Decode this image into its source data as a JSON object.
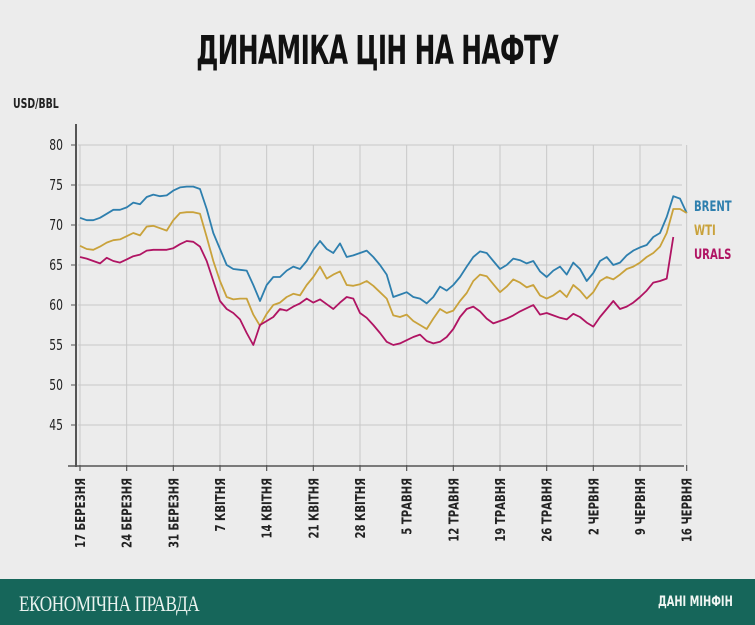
{
  "header": {
    "title": "ДИНАМІКА ЦІН НА НАФТУ",
    "unit_label": "USD/BBL"
  },
  "footer": {
    "brand": "ЕКОНОМІЧНА ПРАВДА",
    "source": "ДАНІ МІНФІН"
  },
  "colors": {
    "background": "#ececec",
    "grid": "#c8c8c8",
    "axis": "#555555",
    "brent": "#2e7fae",
    "wti": "#c9a23b",
    "urals": "#b01463",
    "footer": "#16665a"
  },
  "legend": [
    {
      "name": "BRENT",
      "color": "#2e7fae"
    },
    {
      "name": "WTI",
      "color": "#c9a23b"
    },
    {
      "name": "URALS",
      "color": "#b01463"
    }
  ],
  "chart_data": {
    "type": "line",
    "title": "ДИНАМІКА ЦІН НА НАФТУ",
    "xlabel": "",
    "ylabel": "USD/BBL",
    "ylim": [
      40,
      80
    ],
    "yticks": [
      45,
      50,
      55,
      60,
      65,
      70,
      75,
      80
    ],
    "grid": true,
    "legend_position": "right",
    "x_tick_labels": [
      "17 БЕРЕЗНЯ",
      "24 БЕРЕЗНЯ",
      "31 БЕРЕЗНЯ",
      "7 КВІТНЯ",
      "14 КВІТНЯ",
      "21 КВІТНЯ",
      "28 КВІТНЯ",
      "5 ТРАВНЯ",
      "12 ТРАВНЯ",
      "19 ТРАВНЯ",
      "26 ТРАВНЯ",
      "2 ЧЕРВНЯ",
      "9 ЧЕРВНЯ",
      "16 ЧЕРВНЯ"
    ],
    "x_day_offsets_note": "x values are days since 17 березня",
    "series": [
      {
        "name": "BRENT",
        "color": "#2e7fae",
        "x": [
          0,
          1,
          2,
          3,
          4,
          5,
          6,
          7,
          8,
          9,
          10,
          11,
          12,
          13,
          14,
          15,
          16,
          17,
          18,
          19,
          20,
          21,
          22,
          23,
          24,
          25,
          26,
          27,
          28,
          29,
          30,
          31,
          32,
          33,
          34,
          35,
          36,
          37,
          38,
          39,
          40,
          41,
          42,
          43,
          44,
          45,
          46,
          47,
          48,
          49,
          50,
          51,
          52,
          53,
          54,
          55,
          56,
          57,
          58,
          59,
          60,
          61,
          62,
          63,
          64,
          65,
          66,
          67,
          68,
          69,
          70,
          71,
          72,
          73,
          74,
          75,
          76,
          77,
          78,
          79,
          80,
          81,
          82,
          83,
          84,
          85,
          86,
          87,
          88,
          89,
          90,
          91
        ],
        "values": [
          70.9,
          70.6,
          70.6,
          70.9,
          71.4,
          71.9,
          71.9,
          72.2,
          72.8,
          72.6,
          73.5,
          73.8,
          73.6,
          73.7,
          74.3,
          74.7,
          74.8,
          74.8,
          74.5,
          72.0,
          69.0,
          67.0,
          65.0,
          64.5,
          64.4,
          64.3,
          62.5,
          60.5,
          62.5,
          63.5,
          63.5,
          64.3,
          64.8,
          64.5,
          65.5,
          66.9,
          68.0,
          67.0,
          66.5,
          67.7,
          66.0,
          66.2,
          66.5,
          66.8,
          66.0,
          65.0,
          63.8,
          61.0,
          61.3,
          61.6,
          61.0,
          60.8,
          60.2,
          61.0,
          62.3,
          61.8,
          62.5,
          63.5,
          64.8,
          66.0,
          66.7,
          66.5,
          65.5,
          64.5,
          65.0,
          65.8,
          65.6,
          65.2,
          65.5,
          64.2,
          63.5,
          64.3,
          64.8,
          63.8,
          65.3,
          64.5,
          63.0,
          64.0,
          65.5,
          66.0,
          65.0,
          65.3,
          66.2,
          66.8,
          67.2,
          67.5,
          68.5,
          69.0,
          71.0,
          73.6,
          73.3,
          71.5
        ]
      },
      {
        "name": "WTI",
        "color": "#c9a23b",
        "x": [
          0,
          1,
          2,
          3,
          4,
          5,
          6,
          7,
          8,
          9,
          10,
          11,
          12,
          13,
          14,
          15,
          16,
          17,
          18,
          19,
          20,
          21,
          22,
          23,
          24,
          25,
          26,
          27,
          28,
          29,
          30,
          31,
          32,
          33,
          34,
          35,
          36,
          37,
          38,
          39,
          40,
          41,
          42,
          43,
          44,
          45,
          46,
          47,
          48,
          49,
          50,
          51,
          52,
          53,
          54,
          55,
          56,
          57,
          58,
          59,
          60,
          61,
          62,
          63,
          64,
          65,
          66,
          67,
          68,
          69,
          70,
          71,
          72,
          73,
          74,
          75,
          76,
          77,
          78,
          79,
          80,
          81,
          82,
          83,
          84,
          85,
          86,
          87,
          88,
          89,
          90,
          91
        ],
        "values": [
          67.4,
          67.0,
          66.9,
          67.3,
          67.8,
          68.1,
          68.2,
          68.6,
          69.0,
          68.7,
          69.8,
          69.9,
          69.6,
          69.3,
          70.6,
          71.5,
          71.6,
          71.6,
          71.4,
          68.5,
          65.5,
          63.0,
          61.0,
          60.7,
          60.8,
          60.8,
          58.8,
          57.4,
          58.9,
          60.0,
          60.3,
          61.0,
          61.4,
          61.2,
          62.5,
          63.5,
          64.8,
          63.3,
          63.8,
          64.2,
          62.5,
          62.4,
          62.6,
          63.0,
          62.4,
          61.6,
          60.8,
          58.7,
          58.5,
          58.8,
          58.0,
          57.5,
          57.0,
          58.3,
          59.5,
          59.0,
          59.3,
          60.5,
          61.5,
          63.0,
          63.8,
          63.6,
          62.6,
          61.6,
          62.3,
          63.2,
          62.8,
          62.2,
          62.5,
          61.2,
          60.8,
          61.2,
          61.8,
          61.0,
          62.5,
          61.8,
          60.8,
          61.6,
          63.0,
          63.5,
          63.2,
          63.8,
          64.5,
          64.8,
          65.3,
          66.0,
          66.5,
          67.3,
          69.0,
          72.0,
          72.0,
          71.5
        ]
      },
      {
        "name": "URALS",
        "color": "#b01463",
        "x": [
          0,
          1,
          2,
          3,
          4,
          5,
          6,
          7,
          8,
          9,
          10,
          11,
          12,
          13,
          14,
          15,
          16,
          17,
          18,
          19,
          20,
          21,
          22,
          23,
          24,
          25,
          26,
          27,
          28,
          29,
          30,
          31,
          32,
          33,
          34,
          35,
          36,
          37,
          38,
          39,
          40,
          41,
          42,
          43,
          44,
          45,
          46,
          47,
          48,
          49,
          50,
          51,
          52,
          53,
          54,
          55,
          56,
          57,
          58,
          59,
          60,
          61,
          62,
          63,
          64,
          65,
          66,
          67,
          68,
          69,
          70,
          71,
          72,
          73,
          74,
          75,
          76,
          77,
          78,
          79,
          80,
          81,
          82,
          83,
          84,
          85,
          86,
          87,
          88,
          89
        ],
        "values": [
          66.0,
          65.8,
          65.5,
          65.2,
          65.9,
          65.5,
          65.3,
          65.7,
          66.1,
          66.3,
          66.8,
          66.9,
          66.9,
          66.9,
          67.1,
          67.6,
          68.0,
          67.9,
          67.3,
          65.5,
          63.0,
          60.5,
          59.5,
          59.0,
          58.2,
          56.5,
          55.0,
          57.5,
          58.0,
          58.5,
          59.5,
          59.3,
          59.8,
          60.2,
          60.8,
          60.3,
          60.7,
          60.1,
          59.5,
          60.3,
          61.0,
          60.8,
          59.0,
          58.4,
          57.5,
          56.5,
          55.4,
          55.0,
          55.2,
          55.6,
          56.0,
          56.3,
          55.5,
          55.2,
          55.4,
          56.0,
          57.0,
          58.5,
          59.5,
          59.8,
          59.2,
          58.3,
          57.7,
          58.0,
          58.3,
          58.7,
          59.2,
          59.6,
          60.0,
          58.8,
          59.0,
          58.7,
          58.4,
          58.2,
          58.9,
          58.5,
          57.8,
          57.3,
          58.5,
          59.5,
          60.5,
          59.5,
          59.8,
          60.3,
          61.0,
          61.8,
          62.8,
          63.0,
          63.3,
          68.5
        ]
      }
    ]
  }
}
